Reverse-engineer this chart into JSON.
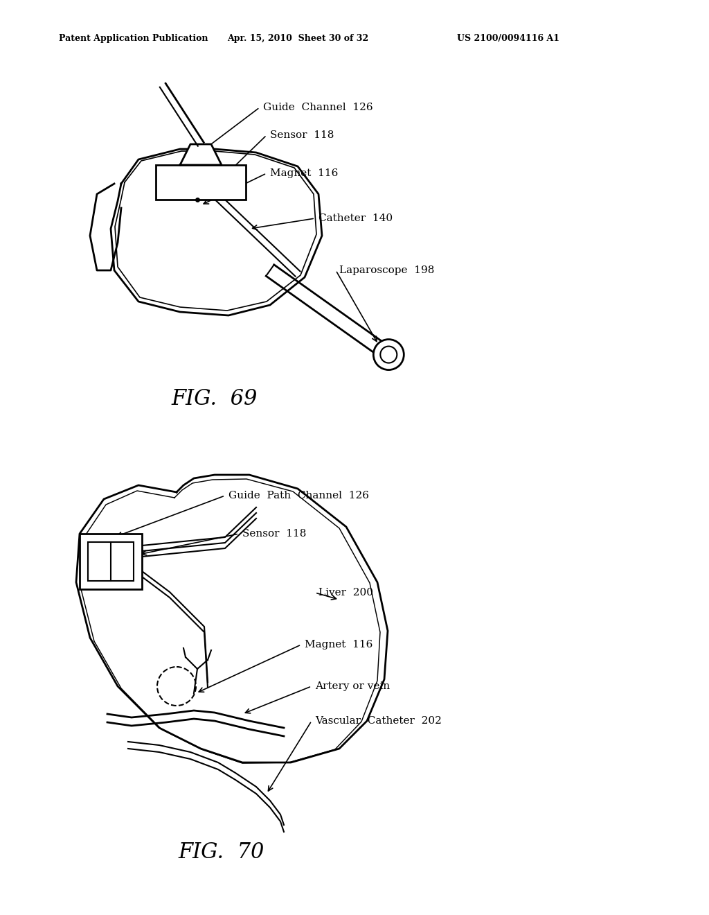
{
  "bg_color": "#ffffff",
  "header_left": "Patent Application Publication",
  "header_mid": "Apr. 15, 2010  Sheet 30 of 32",
  "header_right": "US 2100/0094116 A1",
  "fig69_title": "FIG.  69",
  "fig70_title": "FIG.  70",
  "fig69_labels": {
    "guide_channel": "Guide  Channel  126",
    "sensor": "Sensor  118",
    "magnet": "Magnet  116",
    "catheter": "Catheter  140",
    "laparoscope": "Laparoscope  198"
  },
  "fig70_labels": {
    "guide_path": "Guide  Path  Channel  126",
    "sensor": "Sensor  118",
    "liver": "Liver  200",
    "magnet": "Magnet  116",
    "artery": "Artery or vein",
    "vascular": "Vascular  Catheter  202"
  }
}
